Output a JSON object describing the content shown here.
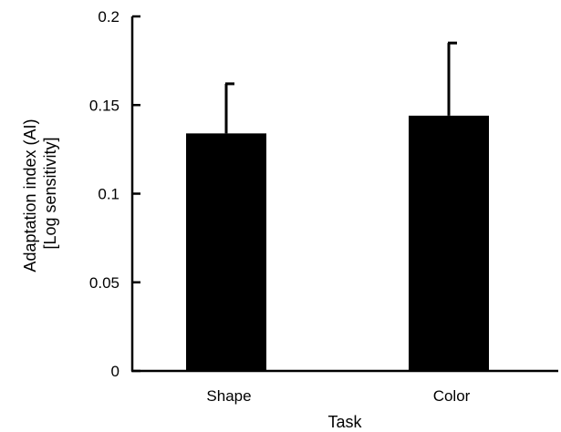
{
  "chart_data": {
    "type": "bar",
    "categories": [
      "Shape",
      "Color"
    ],
    "values": [
      0.134,
      0.144
    ],
    "error_upper": [
      0.162,
      0.185
    ],
    "xlabel": "Task",
    "ylabel_lines": [
      "Adaptation index (AI)",
      "[Log sensitivity]"
    ],
    "ylim": [
      0,
      0.2
    ],
    "yticks": [
      0,
      0.05,
      0.1,
      0.15,
      0.2
    ],
    "ytick_labels": [
      "0",
      "0.05",
      "0.1",
      "0.15",
      "0.2"
    ],
    "bar_color": "#000000",
    "grid": false,
    "legend": "none"
  }
}
